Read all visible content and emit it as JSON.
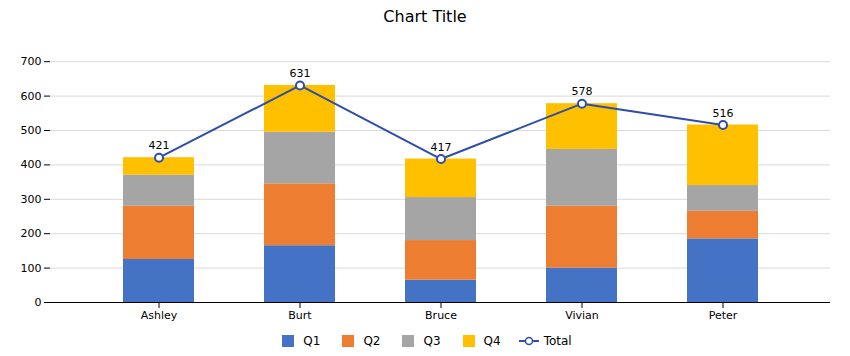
{
  "chart_data": {
    "type": "bar",
    "title": "Chart Title",
    "stacked": true,
    "categories": [
      "Ashley",
      "Burt",
      "Bruce",
      "Vivian",
      "Peter"
    ],
    "series": [
      {
        "name": "Q1",
        "color": "#4472C4",
        "values": [
          125,
          165,
          65,
          100,
          185
        ]
      },
      {
        "name": "Q2",
        "color": "#ED7D31",
        "values": [
          155,
          180,
          115,
          180,
          80
        ]
      },
      {
        "name": "Q3",
        "color": "#A5A5A5",
        "values": [
          90,
          150,
          125,
          165,
          75
        ]
      },
      {
        "name": "Q4",
        "color": "#FFC000",
        "values": [
          51,
          136,
          112,
          133,
          176
        ]
      },
      {
        "name": "Total",
        "type": "line",
        "color": "#2E4EAA",
        "marker": "circle",
        "data_labels": true,
        "values": [
          421,
          631,
          417,
          578,
          516
        ]
      }
    ],
    "ylim": [
      0,
      750
    ],
    "yticks": [
      0,
      100,
      200,
      300,
      400,
      500,
      600,
      700
    ],
    "grid": true,
    "legend": "bottom"
  }
}
